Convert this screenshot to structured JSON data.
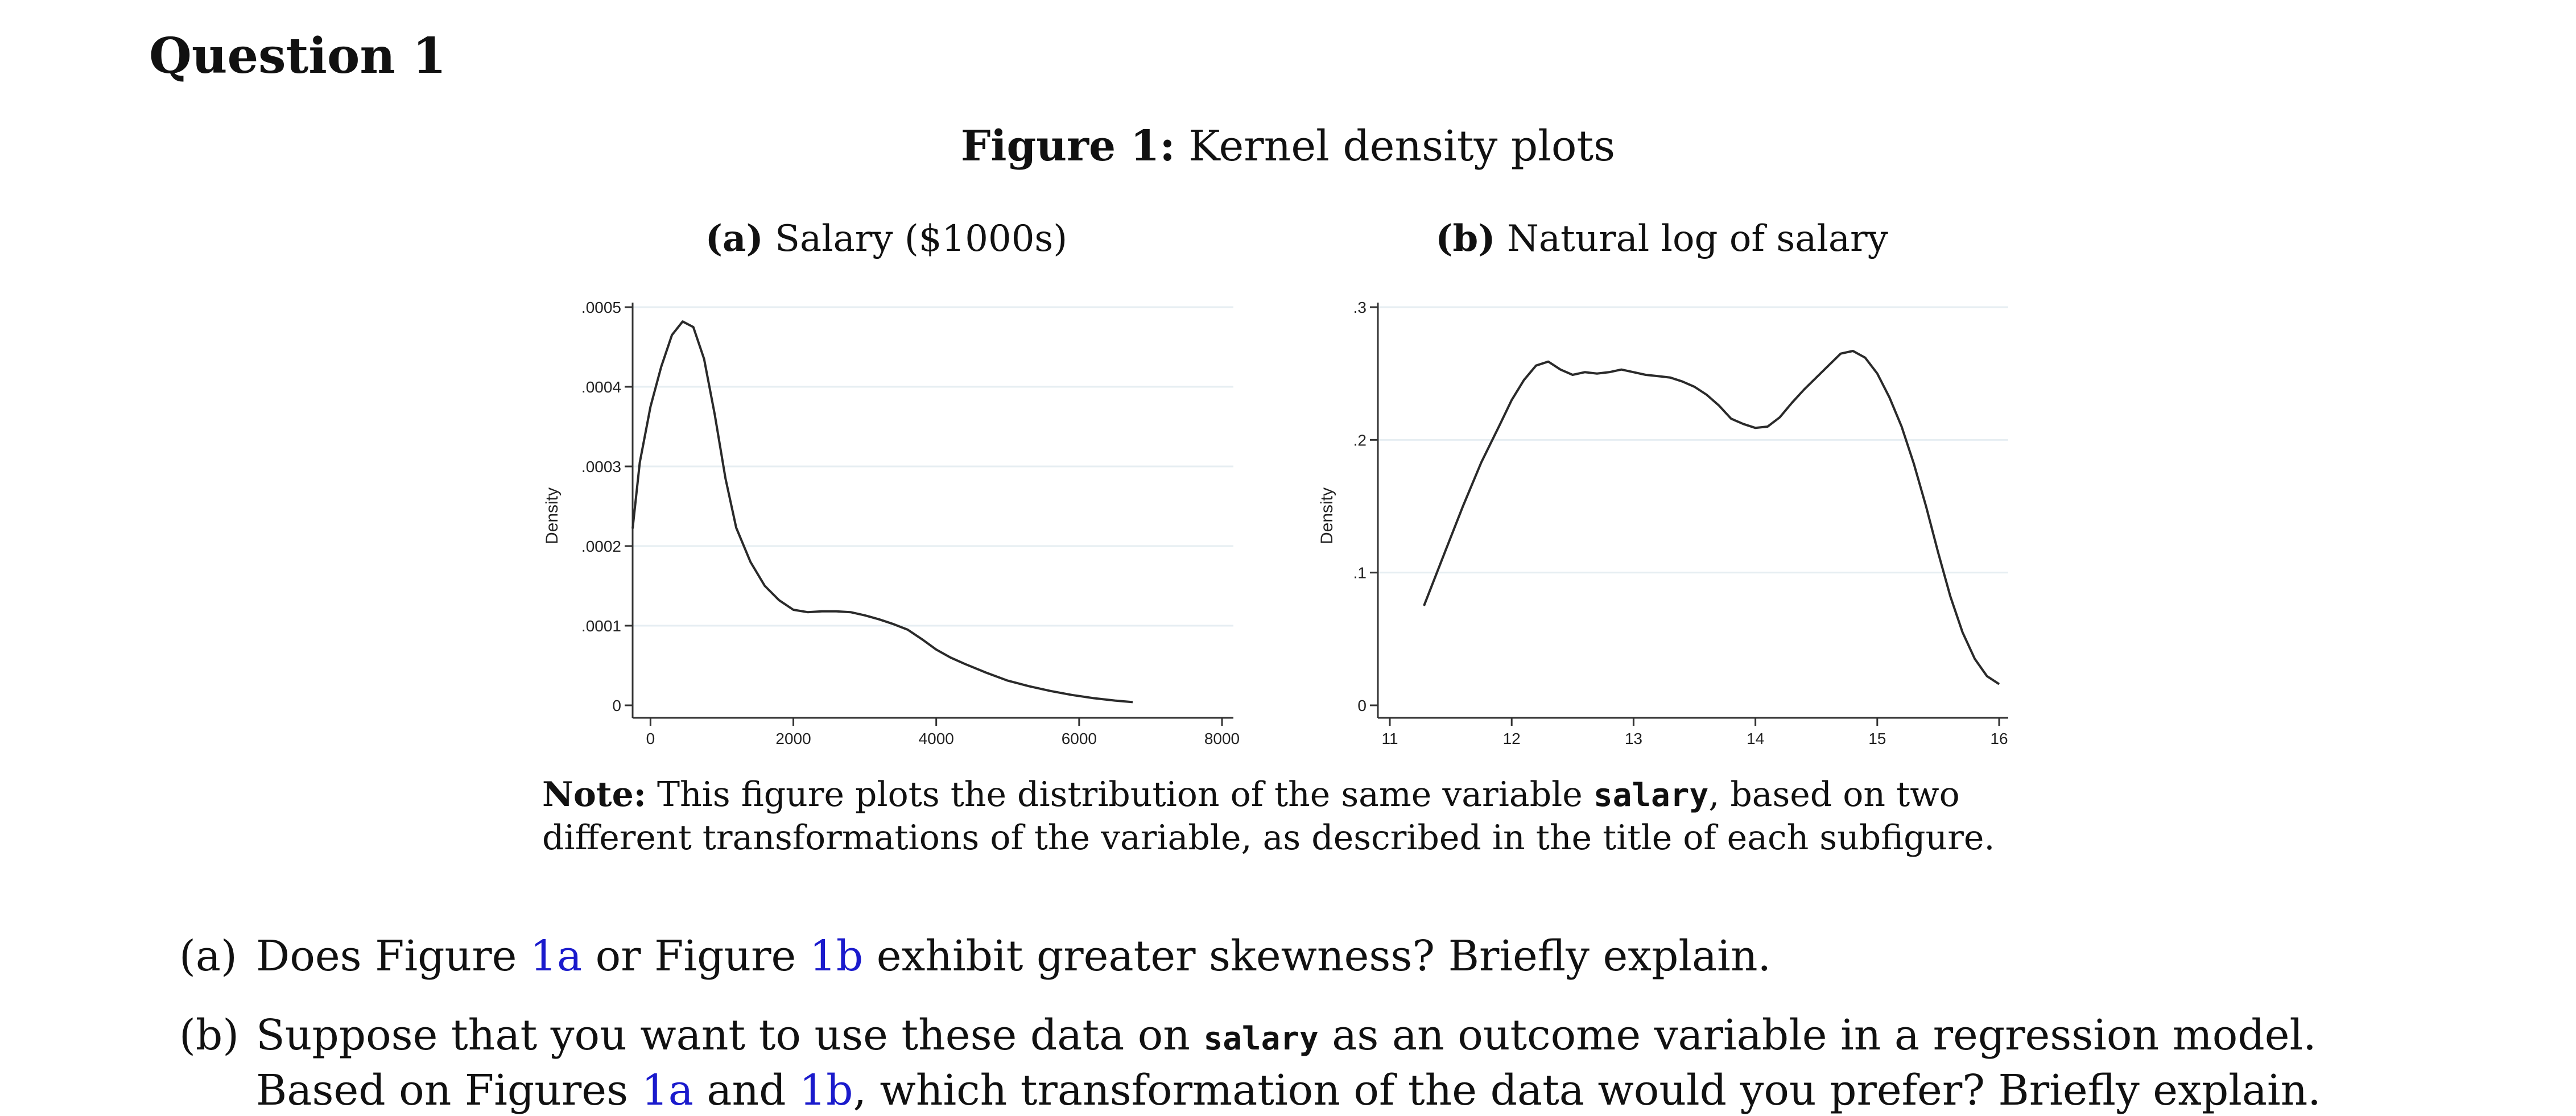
{
  "heading": "Question 1",
  "figure": {
    "caption_label": "Figure 1:",
    "caption_text": " Kernel density plots"
  },
  "subfigures": [
    {
      "label": "(a)",
      "title": " Salary ($1000s)"
    },
    {
      "label": "(b)",
      "title": " Natural log of salary"
    }
  ],
  "chart_data": [
    {
      "type": "line",
      "title": "Salary ($1000s)",
      "ylabel": "Density",
      "xlabel": "",
      "xlim": [
        -250,
        8000
      ],
      "ylim": [
        0,
        0.0005
      ],
      "xticks": [
        0,
        2000,
        4000,
        6000,
        8000
      ],
      "xtick_labels": [
        "0",
        "2000",
        "4000",
        "6000",
        "8000"
      ],
      "yticks": [
        0,
        0.0001,
        0.0002,
        0.0003,
        0.0004,
        0.0005
      ],
      "ytick_labels": [
        "0",
        ".0001",
        ".0002",
        ".0003",
        ".0004",
        ".0005"
      ],
      "grid": true,
      "x": [
        -250,
        -150,
        0,
        150,
        300,
        450,
        600,
        750,
        900,
        1050,
        1200,
        1400,
        1600,
        1800,
        2000,
        2200,
        2400,
        2600,
        2800,
        3000,
        3200,
        3400,
        3600,
        3800,
        4000,
        4200,
        4400,
        4700,
        5000,
        5300,
        5600,
        5900,
        6200,
        6500,
        6750
      ],
      "y": [
        0.000222,
        0.000305,
        0.000375,
        0.000425,
        0.000465,
        0.000482,
        0.000475,
        0.000435,
        0.000365,
        0.000285,
        0.000223,
        0.00018,
        0.00015,
        0.000132,
        0.00012,
        0.000117,
        0.000118,
        0.000118,
        0.000117,
        0.000113,
        0.000108,
        0.000102,
        9.5e-05,
        8.3e-05,
        7e-05,
        6e-05,
        5.2e-05,
        4.1e-05,
        3.1e-05,
        2.4e-05,
        1.8e-05,
        1.3e-05,
        9e-06,
        6e-06,
        4e-06
      ]
    },
    {
      "type": "line",
      "title": "Natural log of salary",
      "ylabel": "Density",
      "xlabel": "",
      "xlim": [
        11,
        16
      ],
      "ylim": [
        0,
        0.3
      ],
      "xticks": [
        11,
        12,
        13,
        14,
        15,
        16
      ],
      "xtick_labels": [
        "11",
        "12",
        "13",
        "14",
        "15",
        "16"
      ],
      "yticks": [
        0,
        0.1,
        0.2,
        0.3
      ],
      "ytick_labels": [
        "0",
        ".1",
        ".2",
        ".3"
      ],
      "grid": true,
      "x": [
        11.28,
        11.45,
        11.6,
        11.75,
        11.9,
        12.0,
        12.1,
        12.2,
        12.3,
        12.4,
        12.5,
        12.6,
        12.7,
        12.8,
        12.9,
        13.0,
        13.1,
        13.2,
        13.3,
        13.4,
        13.5,
        13.6,
        13.7,
        13.8,
        13.9,
        14.0,
        14.1,
        14.2,
        14.3,
        14.4,
        14.5,
        14.6,
        14.7,
        14.8,
        14.9,
        15.0,
        15.1,
        15.2,
        15.3,
        15.4,
        15.5,
        15.6,
        15.7,
        15.8,
        15.9,
        16.0
      ],
      "y": [
        0.075,
        0.115,
        0.15,
        0.183,
        0.211,
        0.23,
        0.245,
        0.256,
        0.259,
        0.253,
        0.249,
        0.251,
        0.25,
        0.251,
        0.253,
        0.251,
        0.249,
        0.248,
        0.247,
        0.244,
        0.24,
        0.234,
        0.226,
        0.216,
        0.212,
        0.209,
        0.21,
        0.217,
        0.228,
        0.238,
        0.247,
        0.256,
        0.265,
        0.267,
        0.262,
        0.25,
        0.232,
        0.21,
        0.182,
        0.15,
        0.115,
        0.082,
        0.055,
        0.035,
        0.022,
        0.016
      ]
    }
  ],
  "note": {
    "label": "Note:",
    "text_before": " This figure plots the distribution of the same variable ",
    "variable": "salary",
    "text_after": ", based on two different transformations of the variable, as described in the title of each subfigure."
  },
  "questions": [
    {
      "label": "(a)",
      "parts": {
        "t1": "Does Figure ",
        "r1": "1a",
        "t2": " or Figure ",
        "r2": "1b",
        "t3": " exhibit greater skewness? Briefly explain."
      }
    },
    {
      "label": "(b)",
      "parts": {
        "t1": "Suppose that you want to use these data on ",
        "code": "salary",
        "t2": " as an outcome variable in a regression model. Based on Figures ",
        "r1": "1a",
        "t3": " and ",
        "r2": "1b",
        "t4": ", which transformation of the data would you prefer? Briefly explain."
      }
    }
  ]
}
